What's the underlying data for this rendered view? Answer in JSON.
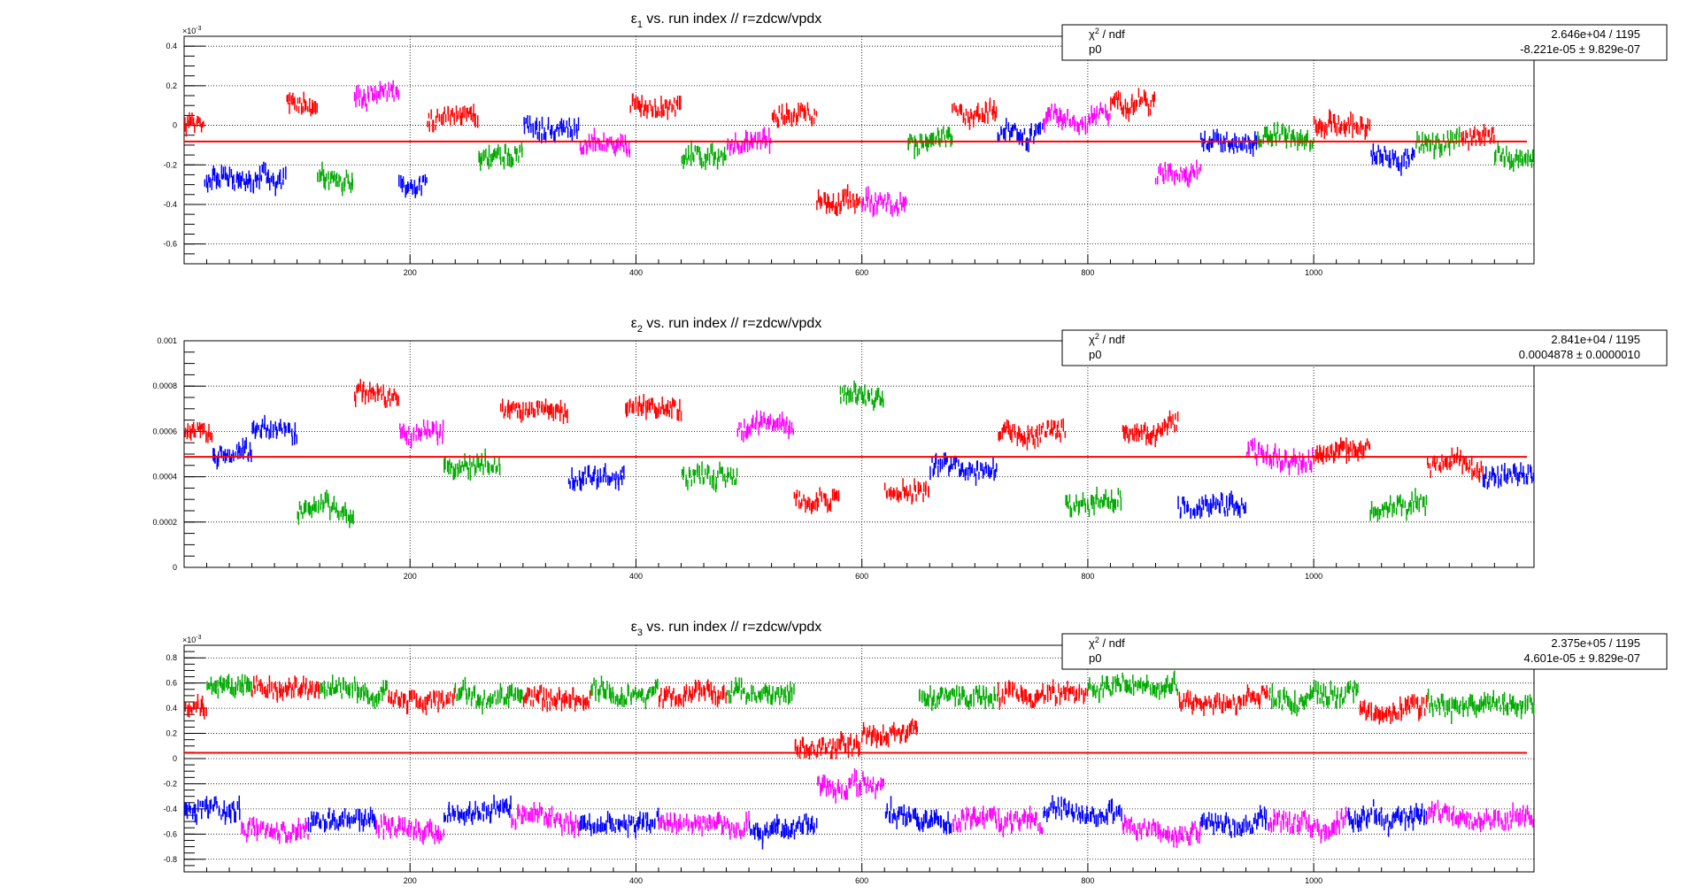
{
  "colors": {
    "fit": "#ff0000",
    "series": [
      "#ff0000",
      "#0000ff",
      "#00aa00",
      "#ff00ff"
    ],
    "grid": "#000000"
  },
  "x_ticks": [
    "200",
    "400",
    "600",
    "800",
    "1000"
  ],
  "panels": [
    {
      "title_main": "ε",
      "title_sub": "1",
      "title_rest": " vs. run index // r=zdcw/vpdx",
      "exponent": "×10",
      "exponent_power": "-3",
      "y_ticks": [
        "0.4",
        "0.2",
        "0",
        "-0.2",
        "-0.4",
        "-0.6"
      ],
      "stats": {
        "chi_label": "χ",
        "chi_sup": "2",
        "chi_rest": " / ndf",
        "chi_value": "2.646e+04 / 1195",
        "p0_label": "p0",
        "p0_value": "-8.221e-05 ± 9.829e-07"
      }
    },
    {
      "title_main": "ε",
      "title_sub": "2",
      "title_rest": " vs. run index // r=zdcw/vpdx",
      "exponent": "",
      "exponent_power": "",
      "y_ticks": [
        "0.001",
        "0.0008",
        "0.0006",
        "0.0004",
        "0.0002",
        "0"
      ],
      "stats": {
        "chi_label": "χ",
        "chi_sup": "2",
        "chi_rest": " / ndf",
        "chi_value": "2.841e+04 / 1195",
        "p0_label": "p0",
        "p0_value": "0.0004878 ± 0.0000010"
      }
    },
    {
      "title_main": "ε",
      "title_sub": "3",
      "title_rest": " vs. run index // r=zdcw/vpdx",
      "exponent": "×10",
      "exponent_power": "-3",
      "y_ticks": [
        "0.8",
        "0.6",
        "0.4",
        "0.2",
        "0",
        "-0.2",
        "-0.4",
        "-0.6",
        "-0.8"
      ],
      "stats": {
        "chi_label": "χ",
        "chi_sup": "2",
        "chi_rest": " / ndf",
        "chi_value": "2.375e+05 / 1195",
        "p0_label": "p0",
        "p0_value": "4.601e-05 ± 9.829e-07"
      }
    }
  ],
  "chart_data": [
    {
      "type": "scatter",
      "title": "ε1 vs. run index // r=zdcw/vpdx",
      "xlim": [
        0,
        1195
      ],
      "ylim": [
        -0.7,
        0.45
      ],
      "y_unit_scale": "×10^-3",
      "fit_p0": -0.08221,
      "grid": true,
      "segments": [
        {
          "x0": 0,
          "x1": 18,
          "center": 0.0,
          "color": 0
        },
        {
          "x0": 18,
          "x1": 90,
          "center": -0.28,
          "color": 1
        },
        {
          "x0": 90,
          "x1": 118,
          "center": 0.12,
          "color": 0
        },
        {
          "x0": 118,
          "x1": 150,
          "center": -0.25,
          "color": 2
        },
        {
          "x0": 150,
          "x1": 190,
          "center": 0.15,
          "color": 3
        },
        {
          "x0": 190,
          "x1": 215,
          "center": -0.3,
          "color": 1
        },
        {
          "x0": 215,
          "x1": 260,
          "center": 0.05,
          "color": 0
        },
        {
          "x0": 260,
          "x1": 300,
          "center": -0.15,
          "color": 2
        },
        {
          "x0": 300,
          "x1": 350,
          "center": 0.0,
          "color": 1
        },
        {
          "x0": 350,
          "x1": 395,
          "center": -0.1,
          "color": 3
        },
        {
          "x0": 395,
          "x1": 440,
          "center": 0.1,
          "color": 0
        },
        {
          "x0": 440,
          "x1": 480,
          "center": -0.15,
          "color": 2
        },
        {
          "x0": 480,
          "x1": 520,
          "center": -0.1,
          "color": 3
        },
        {
          "x0": 520,
          "x1": 560,
          "center": 0.05,
          "color": 0
        },
        {
          "x0": 560,
          "x1": 600,
          "center": -0.4,
          "color": 0
        },
        {
          "x0": 600,
          "x1": 640,
          "center": -0.4,
          "color": 3
        },
        {
          "x0": 640,
          "x1": 680,
          "center": -0.1,
          "color": 2
        },
        {
          "x0": 680,
          "x1": 720,
          "center": 0.05,
          "color": 0
        },
        {
          "x0": 720,
          "x1": 760,
          "center": -0.05,
          "color": 1
        },
        {
          "x0": 760,
          "x1": 820,
          "center": 0.02,
          "color": 3
        },
        {
          "x0": 820,
          "x1": 860,
          "center": 0.1,
          "color": 0
        },
        {
          "x0": 860,
          "x1": 900,
          "center": -0.25,
          "color": 3
        },
        {
          "x0": 900,
          "x1": 950,
          "center": -0.1,
          "color": 1
        },
        {
          "x0": 950,
          "x1": 1000,
          "center": -0.05,
          "color": 2
        },
        {
          "x0": 1000,
          "x1": 1050,
          "center": 0.0,
          "color": 0
        },
        {
          "x0": 1050,
          "x1": 1090,
          "center": -0.15,
          "color": 1
        },
        {
          "x0": 1090,
          "x1": 1130,
          "center": -0.1,
          "color": 2
        },
        {
          "x0": 1130,
          "x1": 1160,
          "center": -0.05,
          "color": 0
        },
        {
          "x0": 1160,
          "x1": 1195,
          "center": -0.15,
          "color": 2
        }
      ]
    },
    {
      "type": "scatter",
      "title": "ε2 vs. run index // r=zdcw/vpdx",
      "xlim": [
        0,
        1195
      ],
      "ylim": [
        0,
        0.001
      ],
      "fit_p0": 0.0004878,
      "grid": true,
      "segments": [
        {
          "x0": 0,
          "x1": 25,
          "center": 0.0006,
          "color": 0
        },
        {
          "x0": 25,
          "x1": 60,
          "center": 0.0005,
          "color": 1
        },
        {
          "x0": 60,
          "x1": 100,
          "center": 0.0006,
          "color": 1
        },
        {
          "x0": 100,
          "x1": 150,
          "center": 0.00025,
          "color": 2
        },
        {
          "x0": 150,
          "x1": 190,
          "center": 0.00075,
          "color": 0
        },
        {
          "x0": 190,
          "x1": 230,
          "center": 0.0006,
          "color": 3
        },
        {
          "x0": 230,
          "x1": 280,
          "center": 0.00045,
          "color": 2
        },
        {
          "x0": 280,
          "x1": 340,
          "center": 0.0007,
          "color": 0
        },
        {
          "x0": 340,
          "x1": 390,
          "center": 0.0004,
          "color": 1
        },
        {
          "x0": 390,
          "x1": 440,
          "center": 0.0007,
          "color": 0
        },
        {
          "x0": 440,
          "x1": 490,
          "center": 0.0004,
          "color": 2
        },
        {
          "x0": 490,
          "x1": 540,
          "center": 0.0006,
          "color": 3
        },
        {
          "x0": 540,
          "x1": 580,
          "center": 0.0003,
          "color": 0
        },
        {
          "x0": 580,
          "x1": 620,
          "center": 0.00075,
          "color": 2
        },
        {
          "x0": 620,
          "x1": 660,
          "center": 0.00035,
          "color": 0
        },
        {
          "x0": 660,
          "x1": 720,
          "center": 0.00045,
          "color": 1
        },
        {
          "x0": 720,
          "x1": 780,
          "center": 0.0006,
          "color": 0
        },
        {
          "x0": 780,
          "x1": 830,
          "center": 0.0003,
          "color": 2
        },
        {
          "x0": 830,
          "x1": 880,
          "center": 0.0006,
          "color": 0
        },
        {
          "x0": 880,
          "x1": 940,
          "center": 0.00025,
          "color": 1
        },
        {
          "x0": 940,
          "x1": 1000,
          "center": 0.0005,
          "color": 3
        },
        {
          "x0": 1000,
          "x1": 1050,
          "center": 0.0005,
          "color": 0
        },
        {
          "x0": 1050,
          "x1": 1100,
          "center": 0.00025,
          "color": 2
        },
        {
          "x0": 1100,
          "x1": 1150,
          "center": 0.00045,
          "color": 0
        },
        {
          "x0": 1150,
          "x1": 1195,
          "center": 0.0004,
          "color": 1
        }
      ]
    },
    {
      "type": "scatter",
      "title": "ε3 vs. run index // r=zdcw/vpdx",
      "xlim": [
        0,
        1195
      ],
      "ylim": [
        -0.9,
        0.9
      ],
      "y_unit_scale": "×10^-3",
      "fit_p0": 0.04601,
      "grid": true,
      "segments": [
        {
          "x0": 0,
          "x1": 20,
          "center": 0.4,
          "color": 0
        },
        {
          "x0": 20,
          "x1": 60,
          "center": 0.6,
          "color": 2
        },
        {
          "x0": 60,
          "x1": 120,
          "center": 0.55,
          "color": 0
        },
        {
          "x0": 120,
          "x1": 180,
          "center": 0.55,
          "color": 2
        },
        {
          "x0": 180,
          "x1": 240,
          "center": 0.45,
          "color": 0
        },
        {
          "x0": 240,
          "x1": 300,
          "center": 0.5,
          "color": 2
        },
        {
          "x0": 300,
          "x1": 360,
          "center": 0.45,
          "color": 0
        },
        {
          "x0": 360,
          "x1": 420,
          "center": 0.55,
          "color": 2
        },
        {
          "x0": 420,
          "x1": 480,
          "center": 0.5,
          "color": 0
        },
        {
          "x0": 480,
          "x1": 540,
          "center": 0.5,
          "color": 2
        },
        {
          "x0": 540,
          "x1": 600,
          "center": 0.1,
          "color": 0
        },
        {
          "x0": 600,
          "x1": 650,
          "center": 0.2,
          "color": 0
        },
        {
          "x0": 650,
          "x1": 720,
          "center": 0.5,
          "color": 2
        },
        {
          "x0": 720,
          "x1": 800,
          "center": 0.5,
          "color": 0
        },
        {
          "x0": 800,
          "x1": 880,
          "center": 0.55,
          "color": 2
        },
        {
          "x0": 880,
          "x1": 960,
          "center": 0.45,
          "color": 0
        },
        {
          "x0": 960,
          "x1": 1040,
          "center": 0.5,
          "color": 2
        },
        {
          "x0": 1040,
          "x1": 1100,
          "center": 0.4,
          "color": 0
        },
        {
          "x0": 1100,
          "x1": 1195,
          "center": 0.45,
          "color": 2
        },
        {
          "x0": 0,
          "x1": 50,
          "center": -0.4,
          "color": 1
        },
        {
          "x0": 50,
          "x1": 110,
          "center": -0.55,
          "color": 3
        },
        {
          "x0": 110,
          "x1": 170,
          "center": -0.5,
          "color": 1
        },
        {
          "x0": 170,
          "x1": 230,
          "center": -0.55,
          "color": 3
        },
        {
          "x0": 230,
          "x1": 290,
          "center": -0.45,
          "color": 1
        },
        {
          "x0": 290,
          "x1": 350,
          "center": -0.5,
          "color": 3
        },
        {
          "x0": 350,
          "x1": 420,
          "center": -0.5,
          "color": 1
        },
        {
          "x0": 420,
          "x1": 500,
          "center": -0.5,
          "color": 3
        },
        {
          "x0": 500,
          "x1": 560,
          "center": -0.55,
          "color": 1
        },
        {
          "x0": 560,
          "x1": 620,
          "center": -0.2,
          "color": 3
        },
        {
          "x0": 620,
          "x1": 680,
          "center": -0.45,
          "color": 1
        },
        {
          "x0": 680,
          "x1": 760,
          "center": -0.5,
          "color": 3
        },
        {
          "x0": 760,
          "x1": 830,
          "center": -0.4,
          "color": 1
        },
        {
          "x0": 830,
          "x1": 900,
          "center": -0.55,
          "color": 3
        },
        {
          "x0": 900,
          "x1": 960,
          "center": -0.5,
          "color": 1
        },
        {
          "x0": 960,
          "x1": 1030,
          "center": -0.5,
          "color": 3
        },
        {
          "x0": 1030,
          "x1": 1100,
          "center": -0.45,
          "color": 1
        },
        {
          "x0": 1100,
          "x1": 1195,
          "center": -0.45,
          "color": 3
        }
      ]
    }
  ]
}
